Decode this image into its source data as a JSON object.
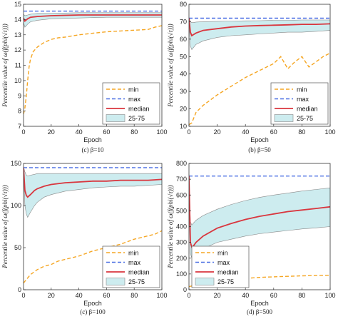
{
  "colors": {
    "min": "#f5a623",
    "max": "#4a6fe3",
    "median": "#d9363e",
    "band": "#cdecef",
    "band_edge": "#888888"
  },
  "chart_data": [
    {
      "type": "line",
      "caption": "(c) β=10",
      "xlabel": "Epoch",
      "ylabel": "Percentile value of ω(f(phi(√τ)))",
      "xlim": [
        0,
        100
      ],
      "ylim": [
        7,
        15
      ],
      "xticks": [
        0,
        20,
        40,
        60,
        80,
        100
      ],
      "yticks": [
        7,
        8,
        9,
        10,
        11,
        12,
        13,
        14,
        15
      ],
      "legend": {
        "position": "bottom-right",
        "entries": [
          "min",
          "max",
          "median",
          "25-75"
        ]
      },
      "series": [
        {
          "name": "min",
          "style": "dashed",
          "x": [
            0,
            1,
            2,
            3,
            4,
            5,
            7,
            10,
            15,
            20,
            25,
            30,
            40,
            50,
            60,
            70,
            80,
            90,
            95,
            100
          ],
          "values": [
            7.8,
            8.2,
            9.0,
            10.0,
            10.9,
            11.4,
            11.9,
            12.2,
            12.5,
            12.7,
            12.8,
            12.85,
            13.0,
            13.1,
            13.2,
            13.25,
            13.3,
            13.35,
            13.5,
            13.6
          ]
        },
        {
          "name": "max",
          "style": "dashed",
          "x": [
            0,
            100
          ],
          "values": [
            14.55,
            14.55
          ]
        },
        {
          "name": "median",
          "style": "solid",
          "x": [
            0,
            1,
            3,
            5,
            10,
            20,
            40,
            60,
            80,
            100
          ],
          "values": [
            14.1,
            13.9,
            14.05,
            14.15,
            14.2,
            14.25,
            14.3,
            14.3,
            14.3,
            14.3
          ]
        },
        {
          "name": "25-75",
          "style": "band",
          "x": [
            0,
            1,
            3,
            5,
            10,
            20,
            40,
            60,
            80,
            100
          ],
          "lower": [
            13.8,
            13.5,
            13.7,
            13.85,
            13.95,
            14.05,
            14.1,
            14.15,
            14.15,
            14.15
          ],
          "upper": [
            14.35,
            14.25,
            14.3,
            14.35,
            14.4,
            14.4,
            14.45,
            14.45,
            14.45,
            14.45
          ]
        }
      ]
    },
    {
      "type": "line",
      "caption": "(b) β=50",
      "xlabel": "Epoch",
      "ylabel": "Percentile value of ω(f(phi(√τ)))",
      "xlim": [
        0,
        100
      ],
      "ylim": [
        10,
        80
      ],
      "xticks": [
        0,
        20,
        40,
        60,
        80,
        100
      ],
      "yticks": [
        10,
        20,
        30,
        40,
        50,
        60,
        70,
        80
      ],
      "legend": {
        "position": "bottom-right",
        "entries": [
          "min",
          "max",
          "median",
          "25-75"
        ]
      },
      "series": [
        {
          "name": "min",
          "style": "dashed",
          "x": [
            0,
            2,
            5,
            10,
            20,
            30,
            40,
            50,
            60,
            65,
            70,
            75,
            80,
            85,
            90,
            95,
            100
          ],
          "values": [
            11,
            12,
            18,
            22,
            28,
            33,
            38,
            42,
            46,
            50,
            43,
            47,
            50,
            44,
            47,
            50,
            52
          ]
        },
        {
          "name": "max",
          "style": "dashed",
          "x": [
            0,
            100
          ],
          "values": [
            72,
            72
          ]
        },
        {
          "name": "median",
          "style": "solid",
          "x": [
            0,
            1,
            2,
            3,
            5,
            10,
            20,
            30,
            40,
            50,
            60,
            70,
            80,
            90,
            100
          ],
          "values": [
            72,
            64,
            62,
            62.5,
            63.5,
            65,
            66,
            67,
            67.5,
            67.8,
            68,
            68.2,
            68.5,
            68.5,
            68.8
          ]
        },
        {
          "name": "25-75",
          "style": "band",
          "x": [
            0,
            1,
            2,
            3,
            5,
            10,
            20,
            30,
            40,
            50,
            60,
            70,
            80,
            90,
            100
          ],
          "lower": [
            70,
            56,
            54,
            55,
            57,
            59,
            61,
            62,
            62.5,
            63,
            63.5,
            64,
            64,
            64.5,
            65
          ],
          "upper": [
            72,
            70,
            69.5,
            69.5,
            69.8,
            70,
            70.2,
            70.4,
            70.5,
            70.6,
            70.8,
            70.8,
            71,
            71,
            71
          ]
        }
      ]
    },
    {
      "type": "line",
      "caption": "(c) β=100",
      "xlabel": "Epoch",
      "ylabel": "Percentile value of ω(f(phi(√τ)))",
      "xlim": [
        0,
        100
      ],
      "ylim": [
        0,
        150
      ],
      "xticks": [
        0,
        20,
        40,
        60,
        80,
        100
      ],
      "yticks": [
        0,
        50,
        100,
        150
      ],
      "legend": {
        "position": "bottom-right",
        "entries": [
          "min",
          "max",
          "median",
          "25-75"
        ]
      },
      "series": [
        {
          "name": "min",
          "style": "dashed",
          "x": [
            0,
            1,
            3,
            5,
            10,
            15,
            20,
            25,
            30,
            40,
            50,
            60,
            70,
            80,
            90,
            95,
            100
          ],
          "values": [
            8,
            10,
            14,
            18,
            24,
            28,
            30,
            34,
            36,
            40,
            46,
            50,
            54,
            60,
            64,
            66,
            70
          ]
        },
        {
          "name": "max",
          "style": "dashed",
          "x": [
            0,
            100
          ],
          "values": [
            145,
            145
          ]
        },
        {
          "name": "median",
          "style": "solid",
          "x": [
            0,
            1,
            2,
            3,
            5,
            8,
            10,
            15,
            20,
            30,
            40,
            50,
            60,
            70,
            80,
            90,
            100
          ],
          "values": [
            145,
            118,
            112,
            110,
            113,
            118,
            120,
            123,
            125,
            127,
            128,
            129,
            129,
            130,
            130,
            130,
            131
          ]
        },
        {
          "name": "25-75",
          "style": "band",
          "x": [
            0,
            1,
            2,
            3,
            5,
            8,
            10,
            15,
            20,
            30,
            40,
            50,
            60,
            70,
            80,
            90,
            100
          ],
          "lower": [
            140,
            100,
            90,
            86,
            92,
            100,
            104,
            110,
            113,
            117,
            119,
            121,
            122,
            123,
            123,
            124,
            125
          ],
          "upper": [
            146,
            140,
            136,
            135,
            136,
            137,
            138,
            138,
            138,
            138,
            138,
            138,
            138,
            138,
            138,
            138,
            138
          ]
        }
      ]
    },
    {
      "type": "line",
      "caption": "(d) β=500",
      "xlabel": "Epoch",
      "ylabel": "Percentile value of ω(f(phi(√τ)))",
      "xlim": [
        0,
        100
      ],
      "ylim": [
        0,
        800
      ],
      "xticks": [
        0,
        20,
        40,
        60,
        80,
        100
      ],
      "yticks": [
        0,
        100,
        200,
        300,
        400,
        500,
        600,
        700,
        800
      ],
      "legend": {
        "position": "bottom-left",
        "entries": [
          "min",
          "max",
          "median",
          "25-75"
        ]
      },
      "series": [
        {
          "name": "min",
          "style": "dashed",
          "x": [
            0,
            5,
            10,
            20,
            30,
            40,
            50,
            60,
            70,
            80,
            90,
            100
          ],
          "values": [
            20,
            30,
            40,
            55,
            65,
            72,
            78,
            82,
            85,
            88,
            90,
            92
          ]
        },
        {
          "name": "max",
          "style": "dashed",
          "x": [
            0,
            100
          ],
          "values": [
            720,
            720
          ]
        },
        {
          "name": "median",
          "style": "solid",
          "x": [
            0,
            1,
            2,
            3,
            5,
            10,
            20,
            30,
            40,
            50,
            60,
            70,
            80,
            90,
            100
          ],
          "values": [
            720,
            300,
            270,
            275,
            300,
            340,
            390,
            420,
            445,
            465,
            480,
            495,
            505,
            515,
            525
          ]
        },
        {
          "name": "25-75",
          "style": "band",
          "x": [
            0,
            1,
            2,
            3,
            5,
            10,
            20,
            30,
            40,
            50,
            60,
            70,
            80,
            90,
            100
          ],
          "lower": [
            700,
            230,
            200,
            205,
            225,
            260,
            300,
            320,
            340,
            355,
            365,
            375,
            385,
            392,
            400
          ],
          "upper": [
            730,
            430,
            410,
            420,
            440,
            470,
            510,
            540,
            565,
            585,
            600,
            612,
            625,
            635,
            645
          ]
        }
      ]
    }
  ]
}
